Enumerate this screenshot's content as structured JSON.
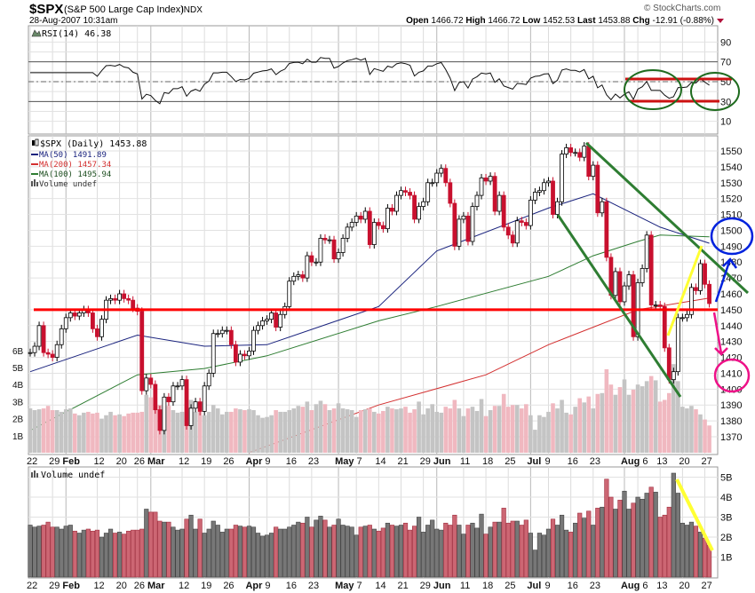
{
  "header": {
    "symbol": "$SPX",
    "name": "(S&P 500 Large Cap Index)",
    "exchange": "INDX",
    "datetime": "28-Aug-2007 10:31am",
    "watermark": "© StockCharts.com",
    "open_label": "Open",
    "open": "1466.72",
    "high_label": "High",
    "high": "1466.72",
    "low_label": "Low",
    "low": "1452.53",
    "last_label": "Last",
    "last": "1453.88",
    "chg_label": "Chg",
    "chg": "-12.91 (-0.88%)"
  },
  "legends": {
    "rsi": "RSI(14) 46.38",
    "price": "$SPX (Daily) 1453.88",
    "ma50": "MA(50) 1491.89",
    "ma200": "MA(200) 1457.34",
    "ma100": "MA(100) 1495.94",
    "volume_overlay": "Volume undef",
    "volume_panel": "Volume undef"
  },
  "colors": {
    "up": "#000000",
    "down": "#c8102e",
    "ma50": "#1a237e",
    "ma200": "#d32f2f",
    "ma100": "#2e7d32",
    "vol_up": "#777777",
    "vol_down": "#cc6673",
    "support": "#ff0000",
    "trend": "#2e7d32",
    "yellow": "#ffff33",
    "blue": "#0022dd",
    "pink": "#ee1188"
  },
  "chart_data": {
    "type": "candlestick",
    "trading_days": {
      "2007-01": [
        22,
        23,
        24,
        25,
        26,
        29,
        30,
        31
      ],
      "2007-02": [
        1,
        2,
        5,
        6,
        7,
        8,
        9,
        12,
        13,
        14,
        15,
        16,
        20,
        21,
        22,
        23,
        26,
        27,
        28
      ],
      "2007-03": [
        1,
        2,
        5,
        6,
        7,
        8,
        9,
        12,
        13,
        14,
        15,
        16,
        19,
        20,
        21,
        22,
        23,
        26,
        27,
        28,
        29,
        30
      ],
      "2007-04": [
        2,
        3,
        4,
        5,
        9,
        10,
        11,
        12,
        13,
        16,
        17,
        18,
        19,
        20,
        23,
        24,
        25,
        26,
        27,
        30
      ],
      "2007-05": [
        1,
        2,
        3,
        4,
        7,
        8,
        9,
        10,
        11,
        14,
        15,
        16,
        17,
        18,
        21,
        22,
        23,
        24,
        25,
        29,
        30,
        31
      ],
      "2007-06": [
        1,
        4,
        5,
        6,
        7,
        8,
        11,
        12,
        13,
        14,
        15,
        18,
        19,
        20,
        21,
        22,
        25,
        26,
        27,
        28,
        29
      ],
      "2007-07": [
        2,
        3,
        5,
        6,
        9,
        10,
        11,
        12,
        13,
        16,
        17,
        18,
        19,
        20,
        23,
        24,
        25,
        26,
        27,
        30,
        31
      ],
      "2007-08": [
        1,
        2,
        3,
        6,
        7,
        8,
        9,
        10,
        13,
        14,
        15,
        16,
        17,
        20,
        21,
        22,
        23,
        24,
        27,
        28
      ]
    },
    "close": [
      1423,
      1427,
      1440,
      1423,
      1422,
      1420,
      1428,
      1438,
      1445,
      1448,
      1446,
      1448,
      1450,
      1448,
      1438,
      1433,
      1444,
      1456,
      1457,
      1456,
      1460,
      1457,
      1456,
      1451,
      1449,
      1399,
      1407,
      1403,
      1387,
      1374,
      1395,
      1392,
      1402,
      1402,
      1406,
      1377,
      1388,
      1392,
      1386,
      1402,
      1410,
      1435,
      1435,
      1437,
      1437,
      1428,
      1417,
      1422,
      1421,
      1424,
      1437,
      1440,
      1443,
      1444,
      1448,
      1439,
      1447,
      1452,
      1468,
      1471,
      1472,
      1470,
      1484,
      1480,
      1480,
      1495,
      1494,
      1494,
      1482,
      1486,
      1495,
      1502,
      1505,
      1509,
      1507,
      1512,
      1491,
      1505,
      1503,
      1501,
      1514,
      1512,
      1522,
      1525,
      1524,
      1522,
      1507,
      1515,
      1518,
      1530,
      1530,
      1536,
      1539,
      1530,
      1517,
      1490,
      1507,
      1509,
      1493,
      1515,
      1522,
      1533,
      1531,
      1534,
      1512,
      1522,
      1502,
      1497,
      1492,
      1506,
      1505,
      1503,
      1519,
      1524,
      1525,
      1530,
      1531,
      1510,
      1518,
      1548,
      1552,
      1549,
      1549,
      1546,
      1553,
      1534,
      1541,
      1511,
      1518,
      1483,
      1459,
      1474,
      1455,
      1465,
      1472,
      1433,
      1467,
      1476,
      1497,
      1453,
      1453,
      1452,
      1426,
      1406,
      1411,
      1445,
      1445,
      1447,
      1464,
      1462,
      1479,
      1466,
      1453.88
    ],
    "volume_billions": [
      2.6,
      2.5,
      2.55,
      2.6,
      2.75,
      2.5,
      2.5,
      2.4,
      2.55,
      2.6,
      2.3,
      2.2,
      2.35,
      2.4,
      2.3,
      2.35,
      2.0,
      2.2,
      2.4,
      2.2,
      2.25,
      2.15,
      2.3,
      2.35,
      2.35,
      2.4,
      3.4,
      3.25,
      3.25,
      2.8,
      2.75,
      2.75,
      2.5,
      2.35,
      2.4,
      2.9,
      3.1,
      2.4,
      2.9,
      2.2,
      2.4,
      2.8,
      2.6,
      2.25,
      2.4,
      2.4,
      2.6,
      2.55,
      2.5,
      2.55,
      2.5,
      2.2,
      2.05,
      2.1,
      2.2,
      2.5,
      2.4,
      2.4,
      2.5,
      2.6,
      2.75,
      2.7,
      3.0,
      2.5,
      2.85,
      3.05,
      2.85,
      2.5,
      2.6,
      2.9,
      2.6,
      2.55,
      2.5,
      2.1,
      2.5,
      2.55,
      2.6,
      2.4,
      2.3,
      2.45,
      2.7,
      2.6,
      2.55,
      2.6,
      2.7,
      2.35,
      2.55,
      3.0,
      2.25,
      2.6,
      2.85,
      2.4,
      2.35,
      2.7,
      2.6,
      3.1,
      2.6,
      2.15,
      2.6,
      2.7,
      2.45,
      3.15,
      2.15,
      2.5,
      2.75,
      2.75,
      3.45,
      2.7,
      2.8,
      2.8,
      2.6,
      2.85,
      2.2,
      1.35,
      2.2,
      2.1,
      2.4,
      2.9,
      2.6,
      3.1,
      2.35,
      2.25,
      2.7,
      3.2,
      2.95,
      3.3,
      2.6,
      3.45,
      3.5,
      4.9,
      4.0,
      3.4,
      3.85,
      4.3,
      3.4,
      3.7,
      4.0,
      3.9,
      4.2,
      4.5,
      4.25,
      3.0,
      3.1,
      3.5,
      5.2,
      4.2,
      2.7,
      2.6,
      2.75,
      2.55,
      2.25,
      1.95,
      1.6
    ],
    "moving_averages": {
      "ma50": [
        [
          "2007-01-22",
          1411
        ],
        [
          "2007-02-26",
          1434
        ],
        [
          "2007-03-19",
          1427
        ],
        [
          "2007-04-09",
          1428
        ],
        [
          "2007-05-14",
          1452
        ],
        [
          "2007-06-01",
          1487
        ],
        [
          "2007-07-09",
          1514
        ],
        [
          "2007-07-23",
          1523
        ],
        [
          "2007-08-13",
          1502
        ],
        [
          "2007-08-28",
          1491.89
        ]
      ],
      "ma100": [
        [
          "2007-01-22",
          1374
        ],
        [
          "2007-02-26",
          1409
        ],
        [
          "2007-03-19",
          1413
        ],
        [
          "2007-04-09",
          1421
        ],
        [
          "2007-05-14",
          1443
        ],
        [
          "2007-06-01",
          1452
        ],
        [
          "2007-07-09",
          1471
        ],
        [
          "2007-07-23",
          1484
        ],
        [
          "2007-08-06",
          1493
        ],
        [
          "2007-08-13",
          1497
        ],
        [
          "2007-08-28",
          1495.94
        ]
      ],
      "ma200": [
        [
          "2007-04-02",
          1360
        ],
        [
          "2007-05-14",
          1390
        ],
        [
          "2007-06-18",
          1409
        ],
        [
          "2007-07-09",
          1428
        ],
        [
          "2007-08-06",
          1450
        ],
        [
          "2007-08-28",
          1457.34
        ]
      ]
    },
    "indicator": "RSI(14)",
    "price_axis": {
      "min": 1360,
      "max": 1560,
      "ticks": [
        1370,
        1380,
        1390,
        1400,
        1410,
        1420,
        1430,
        1440,
        1450,
        1460,
        1470,
        1480,
        1490,
        1500,
        1510,
        1520,
        1530,
        1540,
        1550
      ]
    },
    "rsi_axis": {
      "ticks": [
        90,
        70,
        50,
        30,
        10
      ],
      "overbought": 70,
      "oversold": 30
    },
    "volume_axis_ticks": [
      "1B",
      "2B",
      "3B",
      "4B",
      "5B"
    ],
    "volume_overlay_ticks": [
      "1B",
      "2B",
      "3B",
      "4B",
      "5B",
      "6B"
    ],
    "support_level": 1450,
    "x_ticks": [
      {
        "label": "22",
        "date": "2007-01-22"
      },
      {
        "label": "29",
        "date": "2007-01-29"
      },
      {
        "label": "Feb",
        "date": "2007-02-01",
        "bold": true
      },
      {
        "label": "12",
        "date": "2007-02-12"
      },
      {
        "label": "20",
        "date": "2007-02-20"
      },
      {
        "label": "26",
        "date": "2007-02-26"
      },
      {
        "label": "Mar",
        "date": "2007-03-01",
        "bold": true
      },
      {
        "label": "12",
        "date": "2007-03-12"
      },
      {
        "label": "19",
        "date": "2007-03-19"
      },
      {
        "label": "26",
        "date": "2007-03-26"
      },
      {
        "label": "Apr",
        "date": "2007-04-02",
        "bold": true
      },
      {
        "label": "9",
        "date": "2007-04-09"
      },
      {
        "label": "16",
        "date": "2007-04-16"
      },
      {
        "label": "23",
        "date": "2007-04-23"
      },
      {
        "label": "May",
        "date": "2007-05-01",
        "bold": true
      },
      {
        "label": "7",
        "date": "2007-05-07"
      },
      {
        "label": "14",
        "date": "2007-05-14"
      },
      {
        "label": "21",
        "date": "2007-05-21"
      },
      {
        "label": "29",
        "date": "2007-05-29"
      },
      {
        "label": "Jun",
        "date": "2007-06-01",
        "bold": true
      },
      {
        "label": "11",
        "date": "2007-06-11"
      },
      {
        "label": "18",
        "date": "2007-06-18"
      },
      {
        "label": "25",
        "date": "2007-06-25"
      },
      {
        "label": "Jul",
        "date": "2007-07-02",
        "bold": true
      },
      {
        "label": "9",
        "date": "2007-07-09"
      },
      {
        "label": "16",
        "date": "2007-07-16"
      },
      {
        "label": "23",
        "date": "2007-07-23"
      },
      {
        "label": "Aug",
        "date": "2007-08-01",
        "bold": true
      },
      {
        "label": "6",
        "date": "2007-08-06"
      },
      {
        "label": "13",
        "date": "2007-08-13"
      },
      {
        "label": "20",
        "date": "2007-08-20"
      },
      {
        "label": "27",
        "date": "2007-08-27"
      }
    ]
  }
}
